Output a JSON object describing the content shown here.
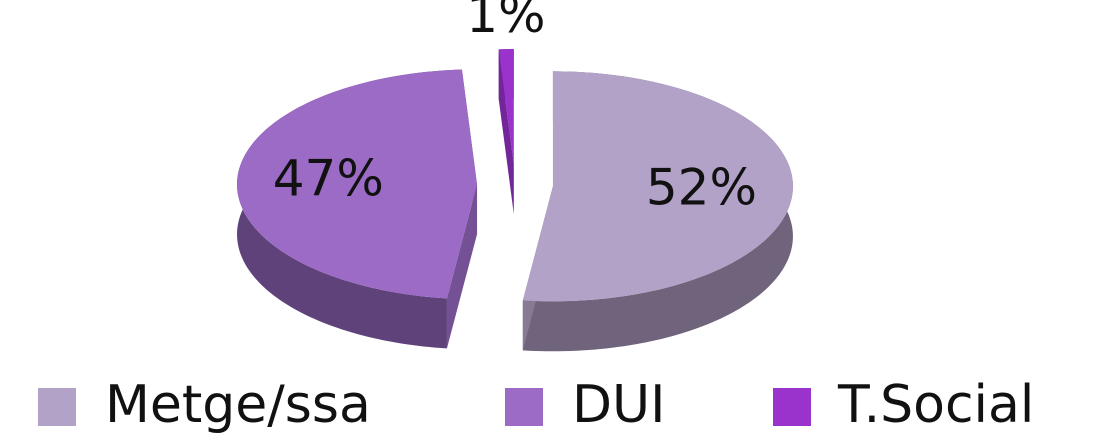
{
  "chart_data": {
    "type": "pie",
    "categories": [
      "Metge/ssa",
      "DUI",
      "T.Social"
    ],
    "values": [
      52,
      47,
      1
    ],
    "value_labels": [
      "52%",
      "47%",
      "1%"
    ],
    "colors": [
      "#b3a2c7",
      "#9b6bc6",
      "#9933cc"
    ],
    "legend": "bottom"
  }
}
